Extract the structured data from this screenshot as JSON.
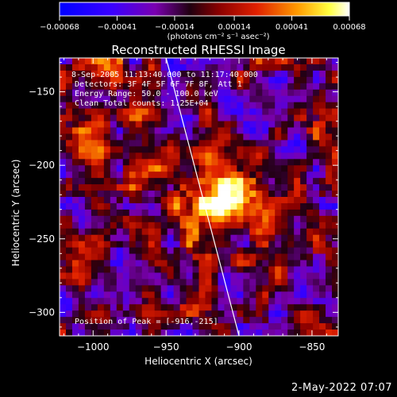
{
  "chart_data": {
    "type": "heatmap",
    "title": "Reconstructed RHESSI Image",
    "xlabel": "Heliocentric X (arcsec)",
    "ylabel": "Heliocentric Y (arcsec)",
    "xlim": [
      -1023,
      -832
    ],
    "ylim": [
      -316,
      -127
    ],
    "x_ticks": [
      -1000,
      -950,
      -900,
      -850
    ],
    "y_ticks": [
      -300,
      -250,
      -200,
      -150
    ],
    "x_tick_labels": [
      "−1000",
      "−950",
      "−900",
      "−850"
    ],
    "y_tick_labels": [
      "−300",
      "−250",
      "−200",
      "−150"
    ],
    "colorbar": {
      "ticks": [
        -0.00068,
        -0.00041,
        -0.00014,
        0.00014,
        0.00041,
        0.00068
      ],
      "tick_labels": [
        "−0.00068",
        "−0.00041",
        "−0.00014",
        "0.00014",
        "0.00041",
        "0.00068"
      ],
      "range": [
        -0.00068,
        0.00068
      ],
      "label": "(photons cm⁻² s⁻¹ asec⁻²)",
      "colors": [
        "#0000ff",
        "#5a00c8",
        "#2a0010",
        "#a00000",
        "#e83000",
        "#ff9a00",
        "#ffff60",
        "#ffffff"
      ]
    },
    "peak": {
      "x": -916,
      "y": -215
    },
    "limb_line": [
      [
        -950,
        -127
      ],
      [
        -900,
        -316
      ]
    ],
    "annotations": {
      "time": "8-Sep-2005 11:13:40.000 to 11:17:40.000",
      "detectors": "Detectors: 3F 4F 5F 6F 7F 8F, Att 1",
      "energy": "Energy Range: 50.0 - 100.0 keV",
      "clean": "Clean     Total counts: 1.25E+04",
      "peak_text": "Position of Peak = [-916,-215]"
    }
  },
  "footer": {
    "date": "2-May-2022 07:07"
  }
}
